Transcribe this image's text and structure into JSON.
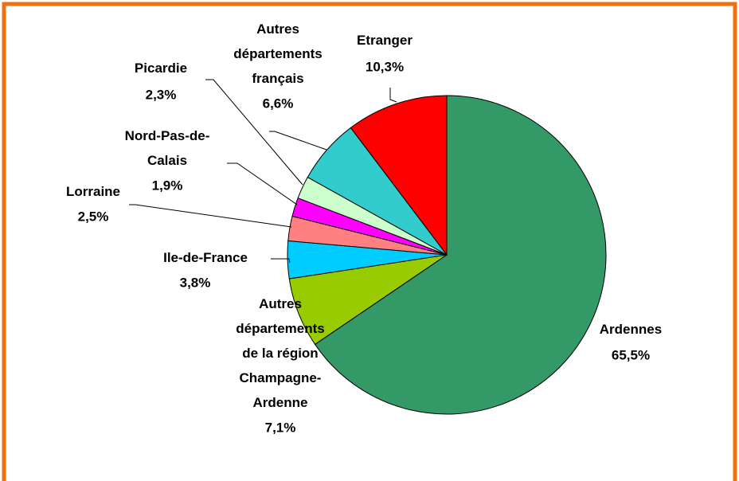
{
  "chart_data": {
    "type": "pie",
    "categories": [
      "Ardennes",
      "Autres\ndépartements\nde la région\nChampagne-\nArdenne",
      "Ile-de-France",
      "Lorraine",
      "Nord-Pas-de-\nCalais",
      "Picardie",
      "Autres\ndépartements\nfrançais",
      "Etranger"
    ],
    "values": [
      65.5,
      7.1,
      3.8,
      2.5,
      1.9,
      2.3,
      6.6,
      10.3
    ],
    "value_labels": [
      "65,5%",
      "7,1%",
      "3,8%",
      "2,5%",
      "1,9%",
      "2,3%",
      "6,6%",
      "10,3%"
    ],
    "colors": [
      "#339966",
      "#99cc00",
      "#00ccff",
      "#ff8080",
      "#ff00ff",
      "#ccffcc",
      "#33cccc",
      "#ff0000"
    ]
  }
}
